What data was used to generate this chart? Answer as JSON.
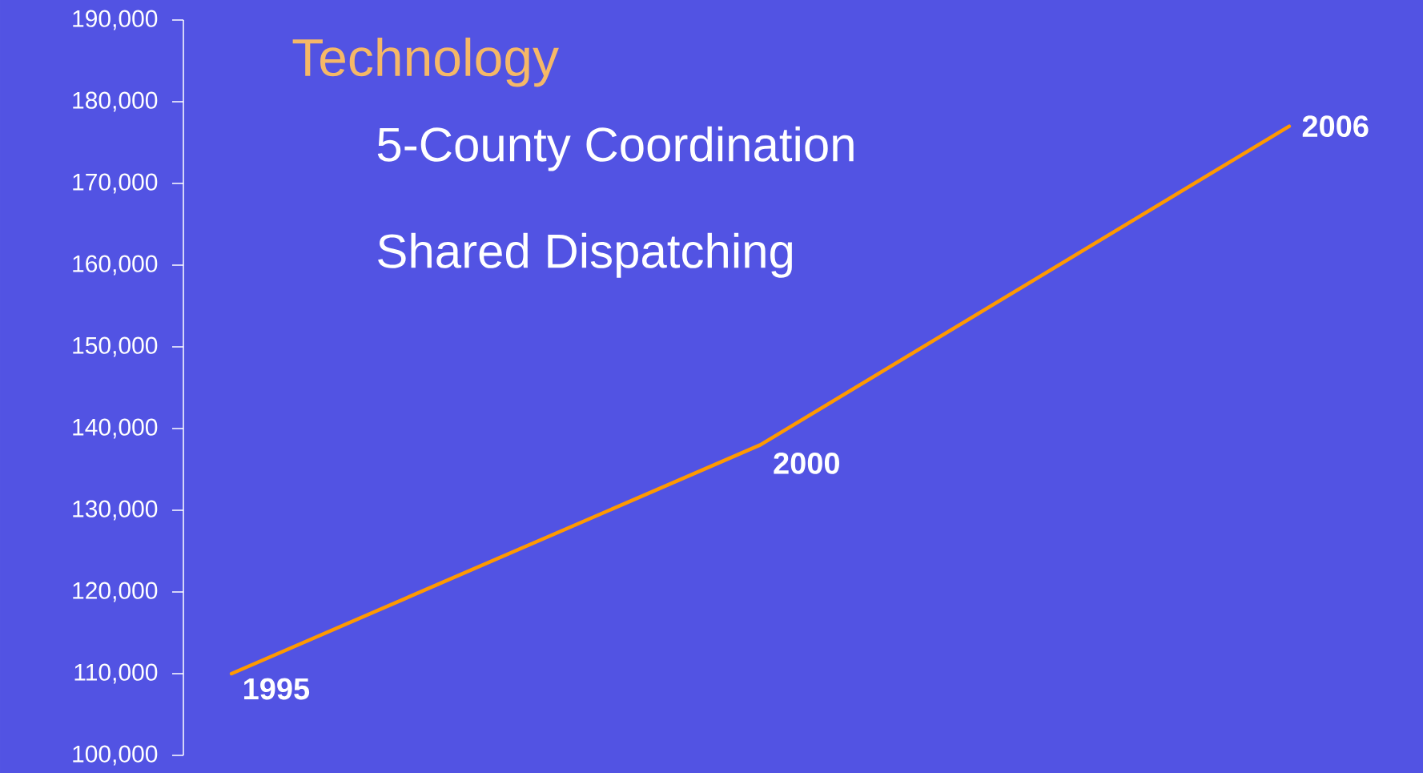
{
  "chart_data": {
    "type": "line",
    "title": "Technology",
    "categories": [
      null,
      null,
      null
    ],
    "series": [
      {
        "color": "#ff9900",
        "values": [
          110000,
          138000,
          177000
        ]
      }
    ],
    "ylim": [
      100000,
      190000
    ],
    "yticks": [
      {
        "value": 100000,
        "label": "100,000"
      },
      {
        "value": 110000,
        "label": "110,000"
      },
      {
        "value": 120000,
        "label": "120,000"
      },
      {
        "value": 130000,
        "label": "130,000"
      },
      {
        "value": 140000,
        "label": "140,000"
      },
      {
        "value": 150000,
        "label": "150,000"
      },
      {
        "value": 160000,
        "label": "160,000"
      },
      {
        "value": 170000,
        "label": "170,000"
      },
      {
        "value": 180000,
        "label": "180,000"
      },
      {
        "value": 190000,
        "label": "190,000"
      }
    ],
    "tick_labels": "y",
    "annotations": [
      "5-County Coordination",
      "Shared Dispatching",
      "1995",
      "2000",
      "2006"
    ]
  }
}
